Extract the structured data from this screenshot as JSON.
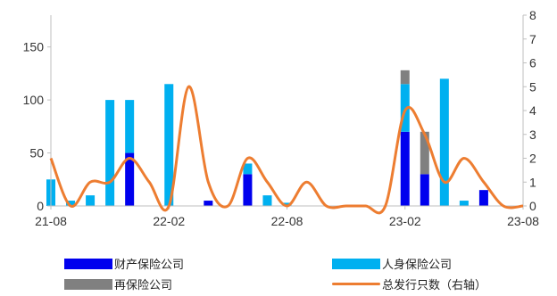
{
  "chart_data": {
    "type": "bar",
    "x": [
      "21-08",
      "21-09",
      "21-10",
      "21-11",
      "21-12",
      "22-01",
      "22-02",
      "22-03",
      "22-04",
      "22-05",
      "22-06",
      "22-07",
      "22-08",
      "22-09",
      "22-10",
      "22-11",
      "22-12",
      "23-01",
      "23-02",
      "23-03",
      "23-04",
      "23-05",
      "23-06",
      "23-07",
      "23-08"
    ],
    "x_tick_labels": [
      "21-08",
      "22-02",
      "22-08",
      "23-02",
      "23-08"
    ],
    "x_tick_index": [
      0,
      6,
      12,
      18,
      24
    ],
    "left_axis": {
      "ylim": [
        0,
        180
      ],
      "ticks": [
        0,
        50,
        100,
        150
      ]
    },
    "right_axis": {
      "ylim": [
        0,
        8
      ],
      "ticks": [
        0,
        1,
        2,
        3,
        4,
        5,
        6,
        7,
        8
      ]
    },
    "series": [
      {
        "name": "财产保险公司",
        "kind": "bar",
        "stack": "s",
        "axis": "left",
        "color": "#0000ee",
        "values": [
          0,
          0,
          0,
          0,
          50,
          0,
          0,
          0,
          5,
          0,
          30,
          0,
          0,
          0,
          0,
          0,
          0,
          0,
          70,
          30,
          0,
          0,
          15,
          0,
          0
        ]
      },
      {
        "name": "人身保险公司",
        "kind": "bar",
        "stack": "s",
        "axis": "left",
        "color": "#00b0f0",
        "values": [
          25,
          5,
          10,
          100,
          50,
          0,
          115,
          0,
          0,
          0,
          10,
          10,
          3,
          0,
          0,
          0,
          0,
          0,
          45,
          0,
          120,
          5,
          0,
          0,
          0
        ]
      },
      {
        "name": "再保险公司",
        "kind": "bar",
        "stack": "s",
        "axis": "left",
        "color": "#808080",
        "values": [
          0,
          0,
          0,
          0,
          0,
          0,
          0,
          0,
          0,
          0,
          0,
          0,
          0,
          0,
          0,
          0,
          0,
          0,
          13,
          40,
          0,
          0,
          0,
          0,
          0
        ]
      },
      {
        "name": "总发行只数（右轴）",
        "kind": "line",
        "axis": "right",
        "color": "#ed7d31",
        "values": [
          2,
          0,
          1,
          1,
          2,
          1,
          0,
          5,
          1,
          0,
          2,
          1,
          0,
          1,
          0,
          0,
          0,
          0,
          4,
          3,
          1,
          2,
          1,
          0,
          0
        ]
      }
    ],
    "legend": [
      {
        "label": "财产保险公司",
        "type": "bar",
        "color": "#0000ee"
      },
      {
        "label": "人身保险公司",
        "type": "bar",
        "color": "#00b0f0"
      },
      {
        "label": "再保险公司",
        "type": "bar",
        "color": "#808080"
      },
      {
        "label": "总发行只数（右轴）",
        "type": "line",
        "color": "#ed7d31"
      }
    ],
    "legend_position": "bottom",
    "grid": false,
    "title": "",
    "xlabel": "",
    "ylabel": ""
  }
}
